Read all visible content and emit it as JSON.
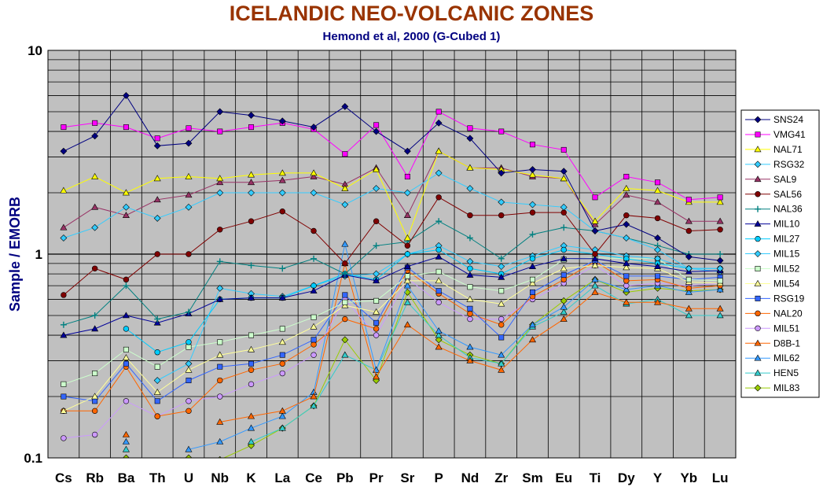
{
  "chart_data": {
    "type": "line",
    "title": "ICELANDIC NEO-VOLCANIC ZONES",
    "subtitle": "Hemond et al, 2000 (G-Cubed 1)",
    "xlabel": "",
    "ylabel": "Sample / EMORB",
    "yscale": "log",
    "ylim": [
      0.1,
      10
    ],
    "y_tick_labels": [
      "0.1",
      "1",
      "10"
    ],
    "grid": true,
    "legend_position": "right",
    "categories": [
      "Cs",
      "Rb",
      "Ba",
      "Th",
      "U",
      "Nb",
      "K",
      "La",
      "Ce",
      "Pb",
      "Pr",
      "Sr",
      "P",
      "Nd",
      "Zr",
      "Sm",
      "Eu",
      "Ti",
      "Dy",
      "Y",
      "Yb",
      "Lu"
    ],
    "series": [
      {
        "name": "SNS24",
        "color": "#000080",
        "marker": "diamond",
        "values": [
          3.2,
          3.8,
          6.0,
          3.4,
          3.5,
          5.0,
          4.8,
          4.5,
          4.2,
          5.3,
          4.0,
          3.2,
          4.4,
          3.7,
          2.5,
          2.6,
          2.55,
          1.3,
          1.4,
          1.2,
          0.97,
          0.93
        ]
      },
      {
        "name": "VMG41",
        "color": "#ff00ff",
        "marker": "square",
        "values": [
          4.2,
          4.4,
          4.2,
          3.7,
          4.15,
          4.0,
          4.2,
          4.4,
          4.1,
          3.1,
          4.3,
          2.4,
          5.0,
          4.15,
          4.0,
          3.45,
          3.25,
          1.9,
          2.4,
          2.25,
          1.85,
          1.9
        ]
      },
      {
        "name": "NAL71",
        "color": "#ffff00",
        "marker": "triangle",
        "values": [
          2.05,
          2.4,
          2.0,
          2.35,
          2.4,
          2.35,
          2.45,
          2.5,
          2.5,
          2.1,
          2.6,
          1.2,
          3.2,
          2.65,
          2.6,
          2.45,
          2.35,
          1.45,
          2.1,
          2.05,
          1.8,
          1.8
        ]
      },
      {
        "name": "RSG32",
        "color": "#33ccff",
        "marker": "diamond",
        "values": [
          1.2,
          1.35,
          1.7,
          1.5,
          1.7,
          2.0,
          2.0,
          2.0,
          2.0,
          1.75,
          2.1,
          2.0,
          2.5,
          2.1,
          1.8,
          1.75,
          1.7,
          1.3,
          1.2,
          1.05,
          0.85,
          0.85
        ]
      },
      {
        "name": "SAL9",
        "color": "#993366",
        "marker": "triangle",
        "values": [
          1.35,
          1.7,
          1.55,
          1.85,
          1.95,
          2.25,
          2.25,
          2.3,
          2.4,
          2.2,
          2.65,
          1.55,
          3.2,
          2.65,
          2.65,
          2.4,
          2.35,
          1.4,
          1.95,
          1.8,
          1.45,
          1.45
        ]
      },
      {
        "name": "SAL56",
        "color": "#800000",
        "marker": "circle",
        "values": [
          0.63,
          0.85,
          0.75,
          1.0,
          1.0,
          1.32,
          1.45,
          1.62,
          1.3,
          0.9,
          1.45,
          1.1,
          1.9,
          1.55,
          1.55,
          1.6,
          1.6,
          1.0,
          1.55,
          1.5,
          1.3,
          1.32
        ]
      },
      {
        "name": "NAL36",
        "color": "#008080",
        "marker": "plus",
        "values": [
          0.45,
          0.5,
          0.7,
          0.48,
          0.52,
          0.92,
          0.88,
          0.85,
          0.95,
          0.8,
          1.1,
          1.15,
          1.45,
          1.2,
          0.95,
          1.25,
          1.35,
          1.3,
          1.2,
          1.1,
          1.0,
          1.0
        ]
      },
      {
        "name": "MIL10",
        "color": "#000099",
        "marker": "triangle",
        "values": [
          0.4,
          0.43,
          0.5,
          0.46,
          0.51,
          0.6,
          0.61,
          0.61,
          0.66,
          0.79,
          0.74,
          0.87,
          0.97,
          0.79,
          0.77,
          0.87,
          0.95,
          0.95,
          0.9,
          0.87,
          0.82,
          0.83
        ]
      },
      {
        "name": "MIL27",
        "color": "#00ccff",
        "marker": "circle",
        "values": [
          null,
          null,
          0.43,
          0.33,
          0.37,
          0.6,
          0.61,
          0.61,
          0.7,
          0.8,
          0.75,
          1.0,
          1.05,
          0.85,
          0.8,
          0.95,
          1.05,
          1.0,
          0.95,
          0.9,
          0.85,
          0.85
        ]
      },
      {
        "name": "MIL15",
        "color": "#33ccff",
        "marker": "diamond",
        "values": [
          null,
          null,
          null,
          0.24,
          0.29,
          0.68,
          0.64,
          0.62,
          0.7,
          0.78,
          0.8,
          1.0,
          1.1,
          0.92,
          0.87,
          0.98,
          1.1,
          1.05,
          0.98,
          0.95,
          0.85,
          0.82
        ]
      },
      {
        "name": "MIL52",
        "color": "#ccffcc",
        "marker": "square",
        "values": [
          0.23,
          0.26,
          0.34,
          0.28,
          0.35,
          0.37,
          0.4,
          0.43,
          0.49,
          0.58,
          0.59,
          0.78,
          0.82,
          0.69,
          0.66,
          0.75,
          0.94,
          0.96,
          0.95,
          0.95,
          0.75,
          0.74
        ]
      },
      {
        "name": "MIL54",
        "color": "#ffff99",
        "marker": "triangle",
        "values": [
          0.17,
          0.2,
          0.31,
          0.21,
          0.27,
          0.32,
          0.34,
          0.37,
          0.44,
          0.56,
          0.52,
          0.74,
          0.74,
          0.6,
          0.57,
          0.72,
          0.85,
          0.88,
          0.86,
          0.85,
          0.73,
          0.72
        ]
      },
      {
        "name": "RSG19",
        "color": "#3366ff",
        "marker": "square",
        "values": [
          0.2,
          0.19,
          0.29,
          0.19,
          0.24,
          0.28,
          0.29,
          0.32,
          0.38,
          0.63,
          0.46,
          0.86,
          0.66,
          0.54,
          0.39,
          0.65,
          0.79,
          0.93,
          0.78,
          0.78,
          0.75,
          0.77
        ]
      },
      {
        "name": "NAL20",
        "color": "#ff6600",
        "marker": "circle",
        "values": [
          0.17,
          0.17,
          0.28,
          0.16,
          0.17,
          0.24,
          0.27,
          0.29,
          0.36,
          0.48,
          0.43,
          0.83,
          0.64,
          0.51,
          0.45,
          0.62,
          0.75,
          0.92,
          0.74,
          0.75,
          0.68,
          0.7
        ]
      },
      {
        "name": "MIL51",
        "color": "#cc99ff",
        "marker": "circle",
        "values": [
          0.125,
          0.13,
          0.19,
          0.16,
          0.19,
          0.2,
          0.23,
          0.26,
          0.32,
          0.6,
          0.4,
          0.76,
          0.58,
          0.48,
          0.48,
          0.6,
          0.72,
          0.88,
          0.7,
          0.72,
          0.7,
          0.72
        ]
      },
      {
        "name": "D8B-1",
        "color": "#ff6600",
        "marker": "triangle",
        "values": [
          null,
          null,
          0.13,
          null,
          null,
          0.15,
          0.16,
          0.17,
          0.2,
          0.9,
          0.25,
          0.45,
          0.35,
          0.3,
          0.27,
          0.38,
          0.48,
          0.65,
          0.58,
          0.58,
          0.54,
          0.54
        ]
      },
      {
        "name": "MIL62",
        "color": "#3399ff",
        "marker": "triangle",
        "values": [
          null,
          null,
          0.12,
          null,
          0.11,
          0.12,
          0.14,
          0.16,
          0.21,
          1.12,
          0.27,
          0.7,
          0.42,
          0.35,
          0.32,
          0.45,
          0.55,
          0.75,
          0.67,
          0.7,
          0.65,
          0.67
        ]
      },
      {
        "name": "HEN5",
        "color": "#33cccc",
        "marker": "triangle",
        "values": [
          null,
          null,
          0.11,
          null,
          null,
          null,
          0.12,
          0.14,
          0.18,
          0.32,
          0.27,
          0.58,
          0.4,
          0.31,
          0.29,
          0.44,
          0.52,
          0.7,
          0.57,
          0.6,
          0.5,
          0.5
        ]
      },
      {
        "name": "MIL83",
        "color": "#99cc00",
        "marker": "diamond",
        "values": [
          null,
          null,
          0.1,
          null,
          0.1,
          0.098,
          0.115,
          0.14,
          0.18,
          0.38,
          0.24,
          0.65,
          0.38,
          0.32,
          0.29,
          0.45,
          0.59,
          0.75,
          0.65,
          0.68,
          0.66,
          0.67
        ]
      }
    ]
  }
}
